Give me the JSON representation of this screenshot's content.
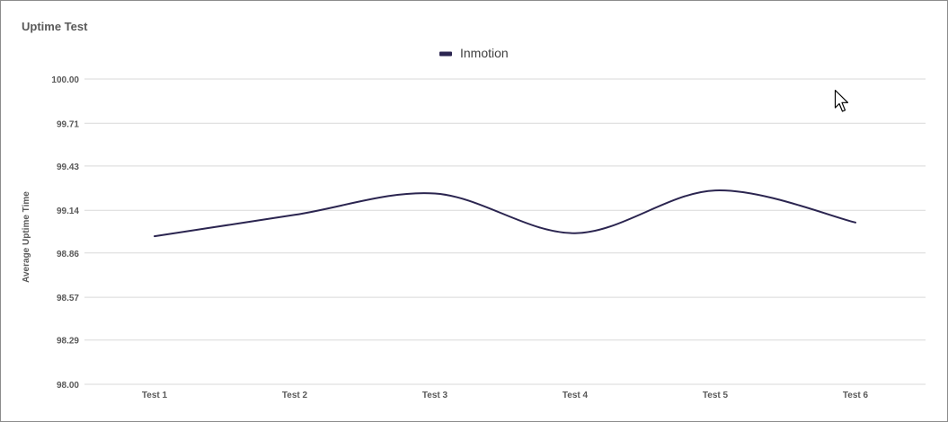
{
  "chart_data": {
    "type": "line",
    "title": "Uptime Test",
    "xlabel": "",
    "ylabel": "Average Uptime Time",
    "categories": [
      "Test 1",
      "Test 2",
      "Test 3",
      "Test 4",
      "Test 5",
      "Test 6"
    ],
    "series": [
      {
        "name": "Inmotion",
        "color": "#2b2550",
        "values": [
          98.97,
          99.11,
          99.25,
          98.99,
          99.27,
          99.06
        ]
      }
    ],
    "ylim": [
      98.0,
      100.0
    ],
    "yticks": [
      "98.00",
      "98.29",
      "98.57",
      "98.86",
      "99.14",
      "99.43",
      "99.71",
      "100.00"
    ],
    "grid": true,
    "legend_position": "top-center"
  },
  "colors": {
    "grid": "#d9d9d9",
    "tick_text": "#595959",
    "title_text": "#595959",
    "legend_text": "#404040",
    "frame": "#8c8c8c"
  },
  "cursor_icon": "mouse-pointer-icon"
}
